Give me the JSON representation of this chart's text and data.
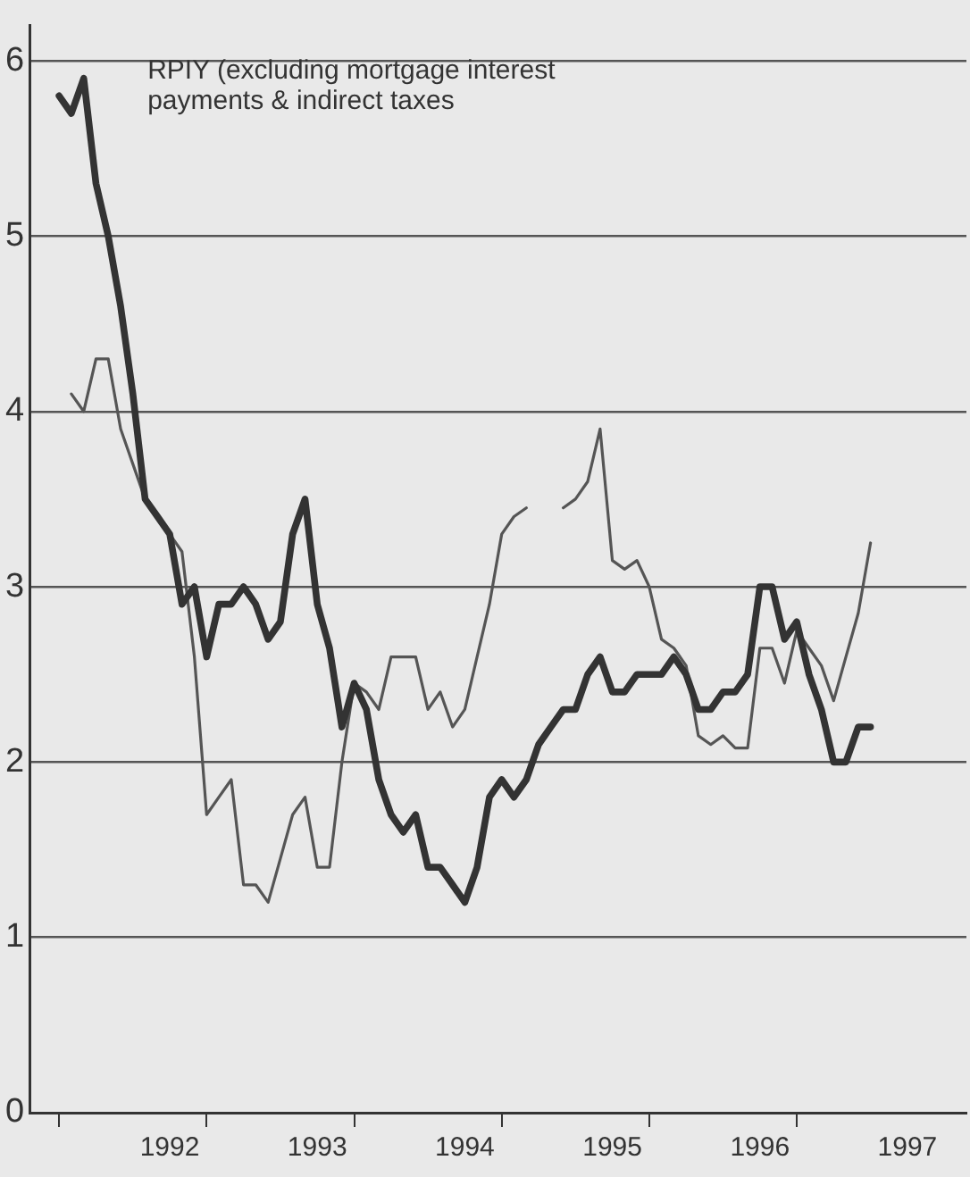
{
  "chart_data": {
    "type": "line",
    "annotations": [
      "RPIY (excluding mortgage interest\npayments & indirect taxes"
    ],
    "x": [
      1991.75,
      1991.833,
      1991.917,
      1992,
      1992.083,
      1992.167,
      1992.25,
      1992.333,
      1992.417,
      1992.5,
      1992.583,
      1992.667,
      1992.75,
      1992.833,
      1992.917,
      1993,
      1993.083,
      1993.167,
      1993.25,
      1993.333,
      1993.417,
      1993.5,
      1993.583,
      1993.667,
      1993.75,
      1993.833,
      1993.917,
      1994,
      1994.083,
      1994.167,
      1994.25,
      1994.333,
      1994.417,
      1994.5,
      1994.583,
      1994.667,
      1994.75,
      1994.833,
      1994.917,
      1995,
      1995.083,
      1995.167,
      1995.25,
      1995.333,
      1995.417,
      1995.5,
      1995.583,
      1995.667,
      1995.75,
      1995.833,
      1995.917,
      1996,
      1996.083,
      1996.167,
      1996.25,
      1996.333,
      1996.417,
      1996.5,
      1996.583,
      1996.667,
      1996.75,
      1996.833,
      1996.917,
      1997,
      1997.083,
      1997.167,
      1997.25
    ],
    "series": [
      {
        "color": "#333333",
        "values": [
          5.8,
          5.7,
          5.9,
          5.3,
          5.0,
          4.6,
          4.1,
          3.5,
          3.4,
          3.3,
          2.9,
          3.0,
          2.6,
          2.9,
          2.9,
          3.0,
          2.9,
          2.7,
          2.8,
          3.3,
          3.5,
          2.9,
          2.65,
          2.2,
          2.45,
          2.3,
          1.9,
          1.7,
          1.6,
          1.7,
          1.4,
          1.4,
          1.3,
          1.2,
          1.4,
          1.8,
          1.9,
          1.8,
          1.9,
          2.1,
          2.2,
          2.3,
          2.3,
          2.5,
          2.6,
          2.4,
          2.4,
          2.5,
          2.5,
          2.5,
          2.6,
          2.5,
          2.3,
          2.3,
          2.4,
          2.4,
          2.5,
          3.0,
          3.0,
          2.7,
          2.8,
          2.5,
          2.3,
          2.0,
          2.0,
          2.2,
          2.2
        ]
      },
      {
        "color": "#555555",
        "values": [
          null,
          4.1,
          4.0,
          4.3,
          4.3,
          3.9,
          3.7,
          3.5,
          3.4,
          3.3,
          3.2,
          2.6,
          1.7,
          1.8,
          1.9,
          1.3,
          1.3,
          1.2,
          1.45,
          1.7,
          1.8,
          1.4,
          1.4,
          2.0,
          2.45,
          2.4,
          2.3,
          2.6,
          2.6,
          2.6,
          2.3,
          2.4,
          2.2,
          2.3,
          2.6,
          2.9,
          3.3,
          3.4,
          3.45,
          null,
          null,
          3.45,
          3.5,
          3.6,
          3.9,
          3.15,
          3.1,
          3.15,
          3.0,
          2.7,
          2.65,
          2.55,
          2.15,
          2.1,
          2.15,
          2.08,
          2.08,
          2.65,
          2.65,
          2.45,
          2.75,
          2.65,
          2.55,
          2.35,
          2.6,
          2.85,
          3.25
        ]
      }
    ],
    "xlim": [
      1991.55,
      1997.9
    ],
    "xticks": [
      {
        "value": 1991.75,
        "label": null
      },
      {
        "value": 1992.5,
        "label": "1992"
      },
      {
        "value": 1992.75,
        "label": null
      },
      {
        "value": 1993.5,
        "label": "1993"
      },
      {
        "value": 1993.75,
        "label": null
      },
      {
        "value": 1994.5,
        "label": "1994"
      },
      {
        "value": 1994.75,
        "label": null
      },
      {
        "value": 1995.5,
        "label": "1995"
      },
      {
        "value": 1995.75,
        "label": null
      },
      {
        "value": 1996.5,
        "label": "1996"
      },
      {
        "value": 1996.75,
        "label": null
      },
      {
        "value": 1997.5,
        "label": "1997"
      }
    ],
    "ylim": [
      0,
      6.2
    ],
    "yticks": [
      0,
      1,
      2,
      3,
      4,
      5,
      6
    ],
    "grid": "y",
    "marker": "none",
    "line_style": "solid"
  }
}
